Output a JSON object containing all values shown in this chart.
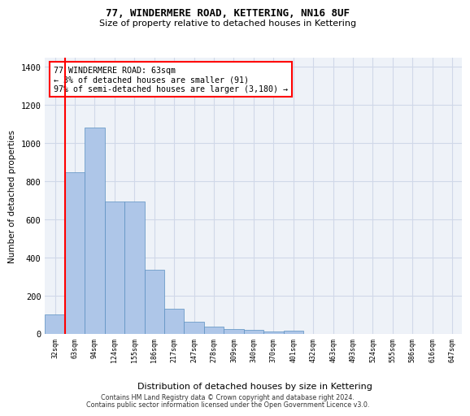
{
  "title_line1": "77, WINDERMERE ROAD, KETTERING, NN16 8UF",
  "title_line2": "Size of property relative to detached houses in Kettering",
  "xlabel": "Distribution of detached houses by size in Kettering",
  "ylabel": "Number of detached properties",
  "footer_line1": "Contains HM Land Registry data © Crown copyright and database right 2024.",
  "footer_line2": "Contains public sector information licensed under the Open Government Licence v3.0.",
  "bar_labels": [
    "32sqm",
    "63sqm",
    "94sqm",
    "124sqm",
    "155sqm",
    "186sqm",
    "217sqm",
    "247sqm",
    "278sqm",
    "309sqm",
    "340sqm",
    "370sqm",
    "401sqm",
    "432sqm",
    "463sqm",
    "493sqm",
    "524sqm",
    "555sqm",
    "586sqm",
    "616sqm",
    "647sqm"
  ],
  "bar_values": [
    100,
    845,
    1080,
    695,
    695,
    335,
    130,
    60,
    35,
    25,
    20,
    10,
    15,
    0,
    0,
    0,
    0,
    0,
    0,
    0,
    0
  ],
  "bar_color": "#aec6e8",
  "bar_edge_color": "#5a8fc0",
  "grid_color": "#d0d8e8",
  "background_color": "#eef2f8",
  "vline_color": "red",
  "vline_x_index": 1,
  "annotation_text": "77 WINDERMERE ROAD: 63sqm\n← 3% of detached houses are smaller (91)\n97% of semi-detached houses are larger (3,180) →",
  "annotation_box_color": "white",
  "annotation_box_edge": "red",
  "ylim": [
    0,
    1450
  ],
  "yticks": [
    0,
    200,
    400,
    600,
    800,
    1000,
    1200,
    1400
  ]
}
